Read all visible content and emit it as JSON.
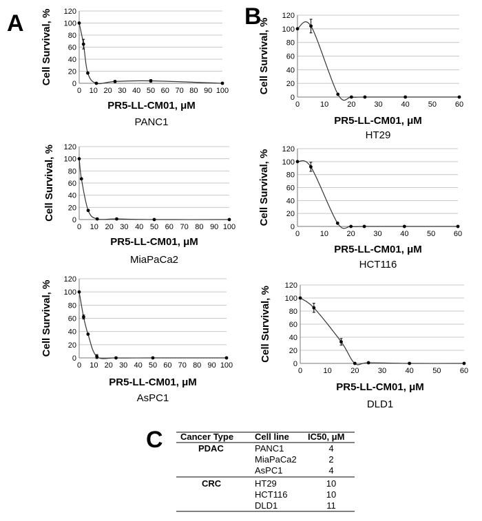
{
  "panels": {
    "A": "A",
    "B": "B",
    "C": "C"
  },
  "chart_data": [
    {
      "id": "panc1",
      "type": "line",
      "cell_line": "PANC1",
      "xlabel": "PR5-LL-CM01, μM",
      "ylabel": "Cell Survival, %",
      "xlim": [
        0,
        100
      ],
      "xticks": [
        0,
        10,
        20,
        30,
        40,
        50,
        60,
        70,
        80,
        90,
        100
      ],
      "ylim": [
        0,
        120
      ],
      "yticks": [
        0,
        20,
        40,
        60,
        80,
        100,
        120
      ],
      "x": [
        0,
        3,
        6,
        12,
        25,
        50,
        100
      ],
      "y": [
        100,
        65,
        17,
        0,
        3,
        4,
        0
      ],
      "err": [
        0,
        8,
        0,
        0,
        0,
        2,
        0
      ]
    },
    {
      "id": "miapaca2",
      "type": "line",
      "cell_line": "MiaPaCa2",
      "xlabel": "PR5-LL-CM01, μM",
      "ylabel": "Cell Survival, %",
      "xlim": [
        0,
        100
      ],
      "xticks": [
        0,
        10,
        20,
        30,
        40,
        50,
        60,
        70,
        80,
        90,
        100
      ],
      "ylim": [
        0,
        120
      ],
      "yticks": [
        0,
        20,
        40,
        60,
        80,
        100,
        120
      ],
      "x": [
        0,
        1.5,
        6,
        12,
        25,
        50,
        100
      ],
      "y": [
        100,
        67,
        15,
        1,
        1,
        0,
        0
      ],
      "err": [
        0,
        0,
        0,
        0,
        0,
        0,
        0
      ]
    },
    {
      "id": "aspc1",
      "type": "line",
      "cell_line": "AsPC1",
      "xlabel": "PR5-LL-CM01, μM",
      "ylabel": "Cell Survival, %",
      "xlim": [
        0,
        100
      ],
      "xticks": [
        0,
        10,
        20,
        30,
        40,
        50,
        60,
        70,
        80,
        90,
        100
      ],
      "ylim": [
        0,
        120
      ],
      "yticks": [
        0,
        20,
        40,
        60,
        80,
        100,
        120
      ],
      "x": [
        0,
        3,
        6,
        12,
        25,
        50,
        100
      ],
      "y": [
        100,
        62,
        36,
        2,
        0,
        0,
        0
      ],
      "err": [
        0,
        3,
        0,
        3,
        0,
        0,
        0
      ]
    },
    {
      "id": "ht29",
      "type": "line",
      "cell_line": "HT29",
      "xlabel": "PR5-LL-CM01, μM",
      "ylabel": "Cell Survival, %",
      "xlim": [
        0,
        60
      ],
      "xticks": [
        0,
        10,
        20,
        30,
        40,
        50,
        60
      ],
      "ylim": [
        0,
        120
      ],
      "yticks": [
        0,
        20,
        40,
        60,
        80,
        100,
        120
      ],
      "x": [
        0,
        5,
        15,
        20,
        25,
        40,
        60
      ],
      "y": [
        100,
        104,
        4,
        0,
        0,
        0,
        0
      ],
      "err": [
        0,
        10,
        0,
        0,
        0,
        0,
        0
      ]
    },
    {
      "id": "hct116",
      "type": "line",
      "cell_line": "HCT116",
      "xlabel": "PR5-LL-CM01, μM",
      "ylabel": "Cell Survival, %",
      "xlim": [
        0,
        60
      ],
      "xticks": [
        0,
        10,
        20,
        30,
        40,
        50,
        60
      ],
      "ylim": [
        0,
        120
      ],
      "yticks": [
        0,
        20,
        40,
        60,
        80,
        100,
        120
      ],
      "x": [
        0,
        5,
        15,
        20,
        25,
        40,
        60
      ],
      "y": [
        100,
        92,
        5,
        0,
        0,
        0,
        0
      ],
      "err": [
        0,
        7,
        0,
        0,
        0,
        0,
        0
      ]
    },
    {
      "id": "dld1",
      "type": "line",
      "cell_line": "DLD1",
      "xlabel": "PR5-LL-CM01, μM",
      "ylabel": "Cell Survival, %",
      "xlim": [
        0,
        60
      ],
      "xticks": [
        0,
        10,
        20,
        30,
        40,
        50,
        60
      ],
      "ylim": [
        0,
        120
      ],
      "yticks": [
        0,
        20,
        40,
        60,
        80,
        100,
        120
      ],
      "x": [
        0,
        5,
        15,
        20,
        25,
        40,
        60
      ],
      "y": [
        100,
        85,
        33,
        0,
        1,
        0,
        0
      ],
      "err": [
        0,
        7,
        5,
        0,
        0,
        0,
        0
      ]
    }
  ],
  "table": {
    "headers": [
      "Cancer Type",
      "Cell line",
      "IC50, μM"
    ],
    "groups": [
      {
        "type": "PDAC",
        "rows": [
          {
            "line": "PANC1",
            "ic50": "4"
          },
          {
            "line": "MiaPaCa2",
            "ic50": "2"
          },
          {
            "line": "AsPC1",
            "ic50": "4"
          }
        ]
      },
      {
        "type": "CRC",
        "rows": [
          {
            "line": "HT29",
            "ic50": "10"
          },
          {
            "line": "HCT116",
            "ic50": "10"
          },
          {
            "line": "DLD1",
            "ic50": "11"
          }
        ]
      }
    ]
  }
}
